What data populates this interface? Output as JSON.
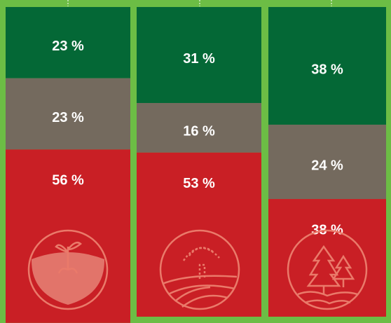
{
  "chart_data": {
    "type": "stacked-bar",
    "categories": [
      null,
      null,
      null
    ],
    "series": [
      {
        "color": "#046836",
        "values": [
          23,
          31,
          38
        ],
        "value_labels": [
          "23 %",
          "31 %",
          "38 %"
        ]
      },
      {
        "color": "#746a5e",
        "values": [
          23,
          16,
          24
        ],
        "value_labels": [
          "23 %",
          "16 %",
          "24 %"
        ]
      },
      {
        "color": "#c91f25",
        "values": [
          56,
          53,
          38
        ],
        "value_labels": [
          "56 %",
          "53 %",
          "38 %"
        ]
      }
    ]
  }
}
